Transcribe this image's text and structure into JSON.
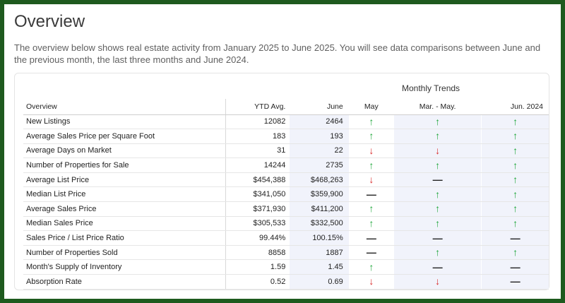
{
  "title": "Overview",
  "description": "The overview below shows real estate activity from January 2025 to June 2025. You will see data comparisons between June and the previous month, the last three months and June 2024.",
  "trends_title": "Monthly Trends",
  "columns": {
    "name": "Overview",
    "ytd": "YTD Avg.",
    "june": "June",
    "may": "May",
    "mar_may": "Mar. - May.",
    "jun_2024": "Jun. 2024"
  },
  "indicator_glyphs": {
    "up": "↑",
    "down": "↓",
    "flat": "—"
  },
  "colors": {
    "up": "#1fa63a",
    "down": "#d92b2b",
    "flat": "#222222",
    "border": "#1e5a1e"
  },
  "rows": [
    {
      "name": "New Listings",
      "ytd": "12082",
      "june": "2464",
      "may": "up",
      "mar_may": "up",
      "jun_2024": "up"
    },
    {
      "name": "Average Sales Price per Square Foot",
      "ytd": "183",
      "june": "193",
      "may": "up",
      "mar_may": "up",
      "jun_2024": "up"
    },
    {
      "name": "Average Days on Market",
      "ytd": "31",
      "june": "22",
      "may": "down",
      "mar_may": "down",
      "jun_2024": "up"
    },
    {
      "name": "Number of Properties for Sale",
      "ytd": "14244",
      "june": "2735",
      "may": "up",
      "mar_may": "up",
      "jun_2024": "up"
    },
    {
      "name": "Average List Price",
      "ytd": "$454,388",
      "june": "$468,263",
      "may": "down",
      "mar_may": "flat",
      "jun_2024": "up"
    },
    {
      "name": "Median List Price",
      "ytd": "$341,050",
      "june": "$359,900",
      "may": "flat",
      "mar_may": "up",
      "jun_2024": "up"
    },
    {
      "name": "Average Sales Price",
      "ytd": "$371,930",
      "june": "$411,200",
      "may": "up",
      "mar_may": "up",
      "jun_2024": "up"
    },
    {
      "name": "Median Sales Price",
      "ytd": "$305,533",
      "june": "$332,500",
      "may": "up",
      "mar_may": "up",
      "jun_2024": "up"
    },
    {
      "name": "Sales Price / List Price Ratio",
      "ytd": "99.44%",
      "june": "100.15%",
      "may": "flat",
      "mar_may": "flat",
      "jun_2024": "flat"
    },
    {
      "name": "Number of Properties Sold",
      "ytd": "8858",
      "june": "1887",
      "may": "flat",
      "mar_may": "up",
      "jun_2024": "up"
    },
    {
      "name": "Month's Supply of Inventory",
      "ytd": "1.59",
      "june": "1.45",
      "may": "up",
      "mar_may": "flat",
      "jun_2024": "flat"
    },
    {
      "name": "Absorption Rate",
      "ytd": "0.52",
      "june": "0.69",
      "may": "down",
      "mar_may": "down",
      "jun_2024": "flat"
    }
  ]
}
